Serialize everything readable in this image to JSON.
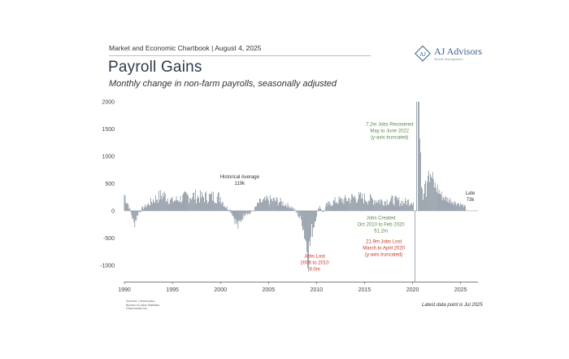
{
  "header": {
    "chartbook": "Market and Economic Chartbook | August 4, 2025",
    "title": "Payroll Gains",
    "subtitle": "Monthly change in non-farm payrolls, seasonally adjusted"
  },
  "logo": {
    "name": "AJ Advisors",
    "monogram": "AJ",
    "tagline": "Wealth Management",
    "color": "#3d5f8a"
  },
  "footer": {
    "sources_line1": "Sources: Clearnomics,",
    "sources_line2": "Bureau of Labor Statistics",
    "sources_line3": "Clearnomics Inc.",
    "latest_note": "Latest data point is Jul 2025"
  },
  "colors": {
    "bar": "#7f8b98",
    "green_annotation": "#5a8a4a",
    "red_annotation": "#c0392b",
    "dark_annotation": "#333333",
    "axis": "#444444"
  },
  "chart_data": {
    "type": "bar",
    "title": "Payroll Gains",
    "ylabel": "",
    "xlabel": "",
    "ylim": [
      -1300,
      2000
    ],
    "xlim": [
      1990,
      2026.8
    ],
    "yticks": [
      2000,
      1500,
      1000,
      500,
      0,
      -500,
      -1000
    ],
    "xticks": [
      1990,
      1995,
      2000,
      2005,
      2010,
      2015,
      2020,
      2025
    ],
    "grid": false,
    "anchors": [
      [
        1990.0,
        300
      ],
      [
        1990.4,
        120
      ],
      [
        1990.8,
        -100
      ],
      [
        1991.0,
        -250
      ],
      [
        1991.5,
        -30
      ],
      [
        1992.0,
        60
      ],
      [
        1992.5,
        120
      ],
      [
        1993.0,
        200
      ],
      [
        1994.0,
        300
      ],
      [
        1995.0,
        180
      ],
      [
        1996.0,
        230
      ],
      [
        1997.0,
        280
      ],
      [
        1998.0,
        250
      ],
      [
        1999.0,
        260
      ],
      [
        2000.0,
        250
      ],
      [
        2000.5,
        80
      ],
      [
        2001.0,
        20
      ],
      [
        2001.3,
        -80
      ],
      [
        2001.7,
        -250
      ],
      [
        2001.9,
        -300
      ],
      [
        2002.2,
        -150
      ],
      [
        2002.7,
        -20
      ],
      [
        2003.0,
        -60
      ],
      [
        2003.5,
        20
      ],
      [
        2004.0,
        150
      ],
      [
        2005.0,
        200
      ],
      [
        2006.0,
        180
      ],
      [
        2007.0,
        100
      ],
      [
        2007.5,
        60
      ],
      [
        2008.0,
        -50
      ],
      [
        2008.5,
        -200
      ],
      [
        2008.8,
        -450
      ],
      [
        2009.0,
        -650
      ],
      [
        2009.2,
        -800
      ],
      [
        2009.5,
        -400
      ],
      [
        2009.8,
        -200
      ],
      [
        2010.0,
        -80
      ],
      [
        2010.3,
        100
      ],
      [
        2010.7,
        -40
      ],
      [
        2011.0,
        100
      ],
      [
        2012.0,
        180
      ],
      [
        2013.0,
        200
      ],
      [
        2014.0,
        250
      ],
      [
        2015.0,
        230
      ],
      [
        2016.0,
        200
      ],
      [
        2017.0,
        180
      ],
      [
        2018.0,
        200
      ],
      [
        2019.0,
        160
      ],
      [
        2019.9,
        180
      ],
      [
        2020.0,
        200
      ]
    ],
    "post_pandemic": [
      [
        2020.6,
        4500
      ],
      [
        2020.7,
        1700
      ],
      [
        2020.8,
        900
      ],
      [
        2020.9,
        650
      ],
      [
        2021.0,
        450
      ],
      [
        2021.1,
        250
      ],
      [
        2021.2,
        500
      ],
      [
        2021.3,
        800
      ],
      [
        2021.4,
        300
      ],
      [
        2021.5,
        600
      ],
      [
        2021.6,
        950
      ],
      [
        2021.7,
        700
      ],
      [
        2021.8,
        500
      ],
      [
        2021.9,
        650
      ],
      [
        2022.0,
        600
      ],
      [
        2022.3,
        450
      ],
      [
        2022.6,
        400
      ],
      [
        2023.0,
        280
      ],
      [
        2023.5,
        220
      ],
      [
        2024.0,
        190
      ],
      [
        2024.5,
        150
      ],
      [
        2025.0,
        120
      ],
      [
        2025.5,
        73
      ]
    ],
    "truncated_bars": [
      {
        "x": 2020.25,
        "value": -1300
      },
      {
        "x": 2020.42,
        "value": 2000
      }
    ],
    "annotations": [
      {
        "lines": [
          "Historical Average",
          "119k"
        ],
        "x": 2002.0,
        "y": 600,
        "color": "dark"
      },
      {
        "lines": [
          "Jobs Lost",
          "2008 to 2010",
          "9.0m"
        ],
        "x": 2009.8,
        "y": -860,
        "color": "red"
      },
      {
        "lines": [
          "Jobs Created",
          "Oct 2010 to Feb 2020",
          "51.2m"
        ],
        "x": 2016.7,
        "y": -160,
        "color": "green"
      },
      {
        "lines": [
          "21.9m Jobs Lost",
          "March to April 2020",
          "(y-axis truncated)"
        ],
        "x": 2017.0,
        "y": -590,
        "color": "red"
      },
      {
        "lines": [
          "7.2m Jobs Recovered",
          "May to June 2022",
          "(y-axis truncated)"
        ],
        "x": 2017.6,
        "y": 1560,
        "color": "green"
      },
      {
        "lines": [
          "Late",
          "73k"
        ],
        "x": 2026.0,
        "y": 300,
        "color": "dark"
      }
    ]
  }
}
